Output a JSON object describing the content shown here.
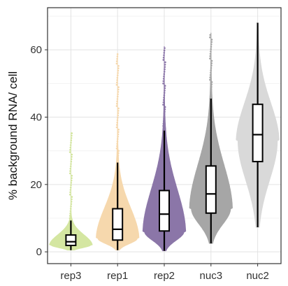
{
  "chart_data": {
    "type": "violin",
    "ylabel": "% background RNA/ cell",
    "xlabel": "",
    "ylim": [
      -3.5,
      72.5
    ],
    "y_ticks": [
      0,
      20,
      40,
      60
    ],
    "grid": true,
    "legend": "none",
    "categories": [
      "rep3",
      "rep1",
      "rep2",
      "nuc3",
      "nuc2"
    ],
    "series": [
      {
        "category": "rep3",
        "color": "#d4e6a1",
        "min": 0.5,
        "q1": 1.9,
        "median": 3.0,
        "q3": 5.0,
        "whisker_low": 0.5,
        "whisker_high": 9.3,
        "max": 35.5,
        "mode": 2.0
      },
      {
        "category": "rep1",
        "color": "#f6d8ad",
        "min": 0.5,
        "q1": 3.5,
        "median": 6.7,
        "q3": 12.8,
        "whisker_low": 0.5,
        "whisker_high": 26.5,
        "max": 59.0,
        "mode": 4.0
      },
      {
        "category": "rep2",
        "color": "#8b76a8",
        "min": 0.3,
        "q1": 6.2,
        "median": 11.2,
        "q3": 18.2,
        "whisker_low": 0.3,
        "whisker_high": 36.0,
        "max": 61.0,
        "mode": 6.0
      },
      {
        "category": "nuc3",
        "color": "#a6a6a6",
        "min": 2.5,
        "q1": 11.5,
        "median": 17.2,
        "q3": 25.5,
        "whisker_low": 2.5,
        "whisker_high": 45.5,
        "max": 65.0,
        "mode": 13.0
      },
      {
        "category": "nuc2",
        "color": "#d9d9d9",
        "min": 7.3,
        "q1": 26.8,
        "median": 34.8,
        "q3": 43.8,
        "whisker_low": 7.3,
        "whisker_high": 68.0,
        "max": 68.0,
        "mode": 33.0
      }
    ]
  }
}
